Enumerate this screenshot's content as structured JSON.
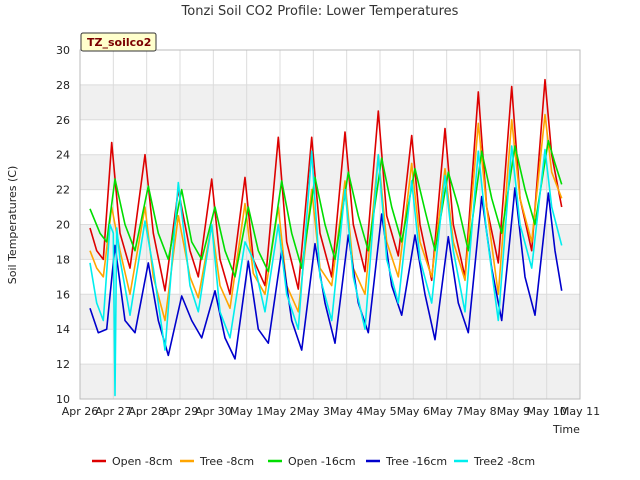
{
  "chart_data": {
    "type": "line",
    "title": "Tonzi Soil CO2 Profile: Lower Temperatures",
    "xlabel": "Time",
    "ylabel": "Soil Temperatures (C)",
    "badge": "TZ_soilco2",
    "ylim": [
      10,
      30
    ],
    "xlim": [
      0,
      15
    ],
    "yticks": [
      10,
      12,
      14,
      16,
      18,
      20,
      22,
      24,
      26,
      28,
      30
    ],
    "xticks": [
      {
        "pos": 0,
        "label": "Apr 26"
      },
      {
        "pos": 1,
        "label": "Apr 27"
      },
      {
        "pos": 2,
        "label": "Apr 28"
      },
      {
        "pos": 3,
        "label": "Apr 29"
      },
      {
        "pos": 4,
        "label": "Apr 30"
      },
      {
        "pos": 5,
        "label": "May 1"
      },
      {
        "pos": 6,
        "label": "May 2"
      },
      {
        "pos": 7,
        "label": "May 3"
      },
      {
        "pos": 8,
        "label": "May 4"
      },
      {
        "pos": 9,
        "label": "May 5"
      },
      {
        "pos": 10,
        "label": "May 6"
      },
      {
        "pos": 11,
        "label": "May 7"
      },
      {
        "pos": 12,
        "label": "May 8"
      },
      {
        "pos": 13,
        "label": "May 9"
      },
      {
        "pos": 14,
        "label": "May 10"
      },
      {
        "pos": 15,
        "label": "May 11"
      }
    ],
    "grid": true,
    "legend_position": "bottom",
    "series": [
      {
        "name": "Open -8cm",
        "color": "#dd0000",
        "x": [
          0.3,
          0.5,
          0.7,
          0.95,
          1.2,
          1.5,
          1.95,
          2.2,
          2.55,
          2.95,
          3.3,
          3.55,
          3.95,
          4.2,
          4.5,
          4.95,
          5.2,
          5.55,
          5.95,
          6.2,
          6.55,
          6.95,
          7.2,
          7.55,
          7.95,
          8.2,
          8.55,
          8.95,
          9.2,
          9.55,
          9.95,
          10.2,
          10.55,
          10.95,
          11.2,
          11.55,
          11.95,
          12.2,
          12.55,
          12.95,
          13.2,
          13.55,
          13.95,
          14.15,
          14.45
        ],
        "y": [
          19.8,
          18.5,
          18.0,
          24.7,
          19.5,
          17.5,
          24.0,
          19.5,
          16.2,
          22.0,
          18.5,
          17.0,
          22.6,
          18.0,
          16.0,
          22.7,
          18.0,
          16.5,
          25.0,
          19.0,
          16.3,
          25.0,
          19.5,
          17.0,
          25.3,
          20.0,
          17.3,
          26.5,
          20.5,
          18.2,
          25.1,
          20.0,
          16.8,
          25.5,
          20.0,
          17.0,
          27.6,
          21.0,
          17.8,
          27.9,
          21.5,
          18.5,
          28.3,
          24.0,
          21.0
        ]
      },
      {
        "name": "Tree -8cm",
        "color": "#ffa500",
        "x": [
          0.3,
          0.5,
          0.7,
          0.95,
          1.2,
          1.5,
          1.95,
          2.2,
          2.55,
          2.95,
          3.3,
          3.55,
          3.95,
          4.2,
          4.5,
          4.95,
          5.2,
          5.55,
          5.95,
          6.2,
          6.55,
          6.95,
          7.2,
          7.55,
          7.95,
          8.2,
          8.55,
          8.95,
          9.2,
          9.55,
          9.95,
          10.2,
          10.55,
          10.95,
          11.2,
          11.55,
          11.95,
          12.2,
          12.55,
          12.95,
          13.2,
          13.55,
          13.95,
          14.15,
          14.45
        ],
        "y": [
          18.5,
          17.5,
          17.0,
          21.0,
          18.5,
          16.0,
          21.0,
          17.0,
          14.5,
          20.5,
          17.0,
          15.8,
          20.0,
          16.5,
          15.2,
          21.2,
          17.2,
          16.0,
          21.0,
          16.5,
          15.0,
          22.0,
          17.5,
          16.5,
          22.5,
          17.5,
          16.0,
          24.0,
          19.0,
          17.0,
          23.5,
          19.0,
          17.0,
          23.2,
          19.0,
          16.8,
          25.8,
          21.0,
          16.0,
          26.0,
          21.5,
          19.0,
          26.3,
          23.0,
          21.5
        ]
      },
      {
        "name": "Open -16cm",
        "color": "#00dd00",
        "x": [
          0.3,
          0.6,
          0.8,
          1.05,
          1.35,
          1.65,
          2.05,
          2.35,
          2.65,
          3.05,
          3.35,
          3.65,
          4.05,
          4.35,
          4.65,
          5.05,
          5.35,
          5.65,
          6.05,
          6.35,
          6.65,
          7.05,
          7.35,
          7.65,
          8.05,
          8.35,
          8.65,
          9.05,
          9.35,
          9.65,
          10.05,
          10.35,
          10.65,
          11.05,
          11.35,
          11.65,
          12.05,
          12.35,
          12.65,
          13.05,
          13.35,
          13.65,
          14.05,
          14.25,
          14.45
        ],
        "y": [
          20.9,
          19.5,
          19.0,
          22.6,
          20.0,
          18.5,
          22.2,
          19.5,
          18.0,
          22.0,
          19.0,
          18.0,
          21.0,
          18.5,
          17.0,
          21.0,
          18.5,
          17.3,
          22.5,
          19.5,
          17.5,
          22.7,
          20.0,
          18.0,
          23.0,
          20.5,
          18.5,
          23.8,
          21.0,
          19.0,
          23.2,
          20.8,
          18.5,
          23.0,
          21.0,
          18.5,
          24.2,
          21.5,
          19.5,
          24.5,
          22.0,
          20.0,
          24.8,
          23.5,
          22.3
        ]
      },
      {
        "name": "Tree -16cm",
        "color": "#0000cc",
        "x": [
          0.3,
          0.55,
          0.8,
          1.05,
          1.35,
          1.65,
          2.05,
          2.35,
          2.65,
          3.05,
          3.35,
          3.65,
          4.05,
          4.35,
          4.65,
          5.05,
          5.35,
          5.65,
          6.05,
          6.35,
          6.65,
          7.05,
          7.35,
          7.65,
          8.05,
          8.35,
          8.65,
          9.05,
          9.35,
          9.65,
          10.05,
          10.35,
          10.65,
          11.05,
          11.35,
          11.65,
          12.05,
          12.35,
          12.65,
          13.05,
          13.35,
          13.65,
          14.05,
          14.25,
          14.45
        ],
        "y": [
          15.2,
          13.8,
          14.0,
          18.8,
          14.5,
          13.8,
          17.8,
          14.5,
          12.5,
          15.9,
          14.5,
          13.5,
          16.2,
          13.5,
          12.3,
          17.9,
          14.0,
          13.2,
          18.5,
          14.5,
          12.8,
          18.9,
          15.5,
          13.2,
          19.4,
          15.5,
          13.8,
          20.6,
          16.5,
          14.8,
          19.4,
          16.0,
          13.4,
          19.3,
          15.5,
          13.8,
          21.6,
          17.5,
          14.5,
          22.1,
          17.0,
          14.8,
          21.8,
          18.5,
          16.2
        ]
      },
      {
        "name": "Tree2 -8cm",
        "color": "#00eeee",
        "x": [
          0.3,
          0.5,
          0.7,
          0.9,
          1.0,
          1.05,
          1.1,
          1.2,
          1.5,
          1.95,
          2.2,
          2.55,
          2.95,
          3.3,
          3.55,
          3.95,
          4.2,
          4.5,
          4.95,
          5.2,
          5.55,
          5.95,
          6.2,
          6.55,
          6.95,
          7.2,
          7.55,
          7.95,
          8.2,
          8.55,
          8.95,
          9.2,
          9.55,
          9.95,
          10.2,
          10.55,
          10.95,
          11.2,
          11.55,
          11.95,
          12.2,
          12.55,
          12.95,
          13.2,
          13.55,
          13.95,
          14.15,
          14.45
        ],
        "y": [
          17.8,
          15.5,
          14.5,
          20.0,
          19.5,
          10.2,
          19.8,
          18.0,
          14.8,
          20.2,
          17.5,
          12.8,
          22.4,
          16.5,
          15.0,
          20.0,
          15.0,
          13.5,
          19.0,
          18.0,
          15.0,
          20.0,
          16.0,
          14.0,
          24.2,
          17.0,
          14.5,
          22.0,
          17.0,
          14.0,
          24.0,
          18.0,
          15.5,
          22.5,
          18.0,
          15.5,
          22.8,
          18.5,
          15.0,
          24.2,
          19.5,
          14.5,
          24.5,
          20.0,
          17.5,
          24.3,
          21.0,
          18.8
        ]
      }
    ]
  }
}
